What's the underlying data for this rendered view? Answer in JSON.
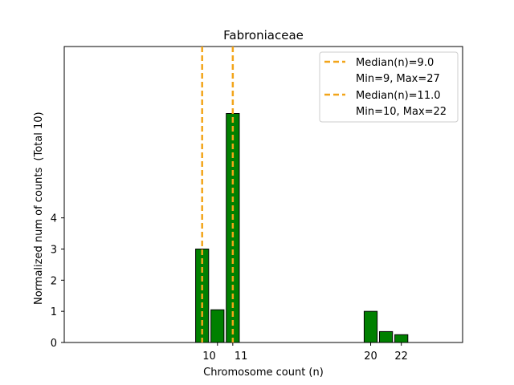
{
  "chart_data": {
    "type": "bar",
    "title": "Fabroniaceae",
    "xlabel": "Chromosome count (n)",
    "ylabel": "Normalized num of counts",
    "ylabel_note": "(Total 10)",
    "xlim": [
      0,
      26
    ],
    "ylim": [
      0,
      9.5
    ],
    "xticks": [
      10,
      11,
      20,
      22
    ],
    "yticks": [
      0,
      1,
      2,
      3,
      4
    ],
    "bar_color": "#008000",
    "bar_edge_color": "#000000",
    "bars": [
      {
        "x": 9,
        "value": 3.0
      },
      {
        "x": 10,
        "value": 1.05
      },
      {
        "x": 11,
        "value": 7.35
      },
      {
        "x": 20,
        "value": 1.0
      },
      {
        "x": 21,
        "value": 0.35
      },
      {
        "x": 22,
        "value": 0.25
      }
    ],
    "median_lines": [
      {
        "x": 9.0,
        "color": "#f2a51a",
        "label": "Median(n)=9.0",
        "sublabel": "Min=9, Max=27"
      },
      {
        "x": 11.0,
        "color": "#f2a51a",
        "label": "Median(n)=11.0",
        "sublabel": "Min=10, Max=22"
      }
    ],
    "legend_position": "top-right"
  }
}
